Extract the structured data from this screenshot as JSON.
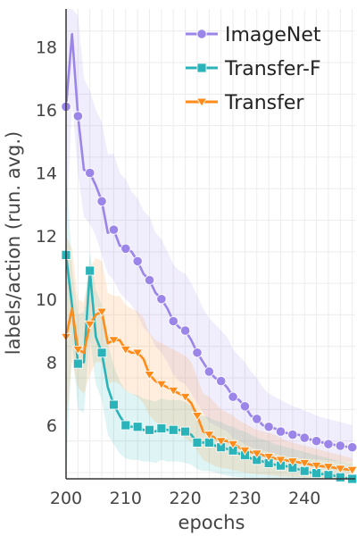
{
  "chart_data": {
    "type": "line",
    "title": "",
    "xlabel": "epochs",
    "ylabel": "labels/action (run. avg.)",
    "xlim": [
      200,
      248.5
    ],
    "ylim": [
      4.3,
      19.2
    ],
    "xticks": [
      200,
      210,
      220,
      230,
      240
    ],
    "yticks": [
      6,
      8,
      10,
      12,
      14,
      16,
      18
    ],
    "grid": true,
    "legend_position": "top-right",
    "series": [
      {
        "name": "ImageNet",
        "color": "#9b85e8",
        "marker": "circle",
        "marker_every": 2,
        "x": [
          200,
          201,
          202,
          203,
          204,
          205,
          206,
          207,
          208,
          209,
          210,
          211,
          212,
          213,
          214,
          215,
          216,
          217,
          218,
          219,
          220,
          221,
          222,
          223,
          224,
          225,
          226,
          227,
          228,
          229,
          230,
          231,
          232,
          233,
          234,
          235,
          236,
          237,
          238,
          239,
          240,
          241,
          242,
          243,
          244,
          245,
          246,
          247,
          248
        ],
        "y": [
          16.1,
          18.4,
          15.8,
          14.1,
          14.0,
          13.6,
          13.1,
          12.1,
          12.2,
          11.7,
          11.6,
          11.5,
          11.2,
          10.8,
          10.6,
          10.2,
          10.0,
          9.7,
          9.3,
          9.1,
          9.0,
          8.7,
          8.3,
          8.0,
          7.7,
          7.5,
          7.4,
          7.2,
          6.9,
          6.8,
          6.6,
          6.3,
          6.2,
          6.0,
          5.95,
          5.9,
          5.8,
          5.75,
          5.7,
          5.7,
          5.6,
          5.55,
          5.5,
          5.45,
          5.4,
          5.38,
          5.35,
          5.32,
          5.3
        ],
        "band_low": [
          12.0,
          16.2,
          14.0,
          12.6,
          12.4,
          12.0,
          11.4,
          10.8,
          10.6,
          10.2,
          10.0,
          9.8,
          9.5,
          9.1,
          8.9,
          8.5,
          8.3,
          8.0,
          7.6,
          7.4,
          7.3,
          7.0,
          6.7,
          6.4,
          6.1,
          6.0,
          5.9,
          5.8,
          5.6,
          5.5,
          5.4,
          5.3,
          5.25,
          5.2,
          5.15,
          5.1,
          5.05,
          5.0,
          4.98,
          4.96,
          4.95,
          4.93,
          4.92,
          4.9,
          4.88,
          4.86,
          4.85,
          4.84,
          4.83
        ],
        "band_high": [
          19.2,
          19.2,
          19.0,
          17.0,
          16.6,
          16.0,
          15.6,
          14.6,
          14.6,
          14.0,
          13.8,
          13.4,
          13.2,
          12.8,
          12.6,
          12.1,
          11.9,
          11.5,
          11.1,
          10.9,
          10.8,
          10.5,
          10.1,
          9.7,
          9.4,
          9.2,
          9.0,
          8.8,
          8.4,
          8.2,
          8.0,
          7.7,
          7.5,
          7.2,
          7.0,
          6.9,
          6.8,
          6.7,
          6.6,
          6.55,
          6.45,
          6.4,
          6.3,
          6.25,
          6.2,
          6.15,
          6.1,
          6.05,
          6.0
        ]
      },
      {
        "name": "Transfer-F",
        "color": "#2ab3b8",
        "marker": "square",
        "marker_every": 2,
        "x": [
          200,
          201,
          202,
          203,
          204,
          205,
          206,
          207,
          208,
          209,
          210,
          211,
          212,
          213,
          214,
          215,
          216,
          217,
          218,
          219,
          220,
          221,
          222,
          223,
          224,
          225,
          226,
          227,
          228,
          229,
          230,
          231,
          232,
          233,
          234,
          235,
          236,
          237,
          238,
          239,
          240,
          241,
          242,
          243,
          244,
          245,
          246,
          247,
          248
        ],
        "y": [
          11.4,
          9.8,
          7.95,
          8.0,
          10.9,
          8.8,
          8.3,
          7.2,
          6.65,
          6.3,
          6.0,
          5.95,
          5.95,
          5.85,
          5.85,
          5.8,
          5.9,
          5.85,
          5.85,
          5.85,
          5.8,
          5.7,
          5.45,
          5.45,
          5.45,
          5.35,
          5.3,
          5.25,
          5.2,
          5.1,
          5.05,
          4.95,
          4.9,
          4.85,
          4.8,
          4.75,
          4.72,
          4.7,
          4.65,
          4.6,
          4.55,
          4.5,
          4.48,
          4.45,
          4.42,
          4.4,
          4.35,
          4.32,
          4.3
        ],
        "band_low": [
          4.3,
          8.6,
          6.5,
          6.4,
          8.8,
          7.3,
          6.8,
          5.7,
          5.4,
          5.1,
          4.95,
          4.9,
          4.9,
          4.85,
          4.85,
          4.8,
          4.9,
          4.85,
          4.85,
          4.85,
          4.8,
          4.75,
          4.6,
          4.55,
          4.55,
          4.5,
          4.45,
          4.4,
          4.38,
          4.35,
          4.33,
          4.32,
          4.31,
          4.3,
          4.3,
          4.3,
          4.3,
          4.3,
          4.3,
          4.3,
          4.3,
          4.3,
          4.3,
          4.3,
          4.3,
          4.3,
          4.3,
          4.3,
          4.3
        ],
        "band_high": [
          14.2,
          11.0,
          9.5,
          9.6,
          11.5,
          10.3,
          9.8,
          8.6,
          7.9,
          7.4,
          7.1,
          7.0,
          6.95,
          6.85,
          6.8,
          6.75,
          6.85,
          6.8,
          6.8,
          6.8,
          6.75,
          6.6,
          6.3,
          6.3,
          6.25,
          6.15,
          6.1,
          6.0,
          5.95,
          5.85,
          5.8,
          5.7,
          5.6,
          5.55,
          5.5,
          5.4,
          5.35,
          5.3,
          5.25,
          5.2,
          5.15,
          5.1,
          5.05,
          5.0,
          4.95,
          4.9,
          4.85,
          4.82,
          4.8
        ]
      },
      {
        "name": "Transfer",
        "color": "#ff8c1a",
        "marker": "triangle-down",
        "marker_every": 2,
        "x": [
          200,
          201,
          202,
          203,
          204,
          205,
          206,
          207,
          208,
          209,
          210,
          211,
          212,
          213,
          214,
          215,
          216,
          217,
          218,
          219,
          220,
          221,
          222,
          223,
          224,
          225,
          226,
          227,
          228,
          229,
          230,
          231,
          232,
          233,
          234,
          235,
          236,
          237,
          238,
          239,
          240,
          241,
          242,
          243,
          244,
          245,
          246,
          247,
          248
        ],
        "y": [
          8.8,
          9.7,
          8.4,
          8.3,
          9.2,
          9.5,
          9.6,
          8.6,
          8.7,
          8.7,
          8.4,
          8.3,
          8.3,
          8.1,
          7.6,
          7.4,
          7.3,
          7.2,
          7.1,
          7.0,
          6.9,
          6.7,
          6.3,
          5.8,
          5.7,
          5.6,
          5.5,
          5.5,
          5.4,
          5.3,
          5.2,
          5.15,
          5.1,
          5.05,
          5.0,
          4.95,
          4.9,
          4.88,
          4.85,
          4.82,
          4.8,
          4.75,
          4.72,
          4.7,
          4.68,
          4.65,
          4.62,
          4.6,
          4.58
        ],
        "band_low": [
          6.0,
          8.0,
          7.2,
          7.0,
          7.6,
          8.0,
          8.0,
          7.3,
          7.4,
          7.3,
          7.1,
          7.0,
          6.9,
          6.7,
          6.3,
          6.1,
          6.0,
          5.9,
          5.8,
          5.7,
          5.6,
          5.45,
          5.2,
          4.9,
          4.8,
          4.7,
          4.65,
          4.62,
          4.58,
          4.55,
          4.5,
          4.47,
          4.45,
          4.43,
          4.42,
          4.4,
          4.38,
          4.37,
          4.36,
          4.35,
          4.34,
          4.33,
          4.32,
          4.31,
          4.3,
          4.3,
          4.3,
          4.3,
          4.3
        ],
        "band_high": [
          12.0,
          11.6,
          10.0,
          9.9,
          11.0,
          11.3,
          11.2,
          10.2,
          10.1,
          10.1,
          9.8,
          9.7,
          9.6,
          9.4,
          8.9,
          8.7,
          8.6,
          8.5,
          8.4,
          8.3,
          8.2,
          8.0,
          7.5,
          7.0,
          6.9,
          6.7,
          6.5,
          6.4,
          6.3,
          6.15,
          6.05,
          5.95,
          5.85,
          5.8,
          5.75,
          5.7,
          5.6,
          5.5,
          5.45,
          5.4,
          5.35,
          5.3,
          5.25,
          5.2,
          5.15,
          5.1,
          5.05,
          5.0,
          4.95
        ]
      }
    ]
  }
}
